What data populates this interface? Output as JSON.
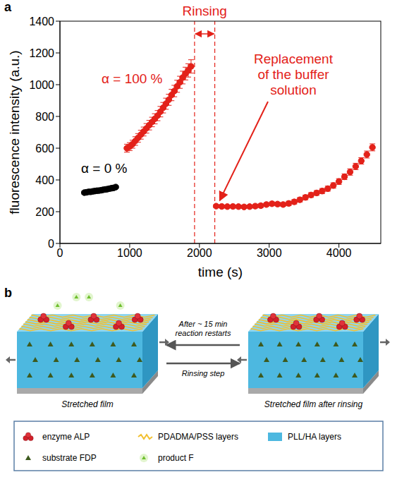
{
  "panel_labels": [
    "a",
    "b"
  ],
  "chart_data": {
    "type": "scatter",
    "x_label": "time (s)",
    "y_label": "fluorescence intensity (a.u.)",
    "xlim": [
      0,
      4600
    ],
    "xticks": [
      0,
      1000,
      2000,
      3000,
      4000
    ],
    "ylim": [
      0,
      1400
    ],
    "yticks": [
      0,
      200,
      400,
      600,
      800,
      1000,
      1200,
      1400
    ],
    "marker": "circle",
    "series": [
      {
        "name": "α = 0 %",
        "color": "#000000",
        "x": [
          350,
          380,
          410,
          440,
          470,
          500,
          530,
          560,
          590,
          620,
          650,
          680,
          710,
          740,
          770,
          800
        ],
        "values": [
          320,
          322,
          325,
          325,
          328,
          330,
          332,
          333,
          335,
          338,
          340,
          342,
          345,
          348,
          350,
          355
        ],
        "errors": [
          10,
          10,
          10,
          10,
          10,
          10,
          10,
          10,
          10,
          10,
          10,
          10,
          10,
          10,
          10,
          10
        ]
      },
      {
        "name": "α = 100 %",
        "color": "#e32119",
        "x": [
          960,
          1000,
          1040,
          1080,
          1120,
          1160,
          1200,
          1240,
          1280,
          1320,
          1360,
          1400,
          1440,
          1480,
          1520,
          1560,
          1600,
          1640,
          1680,
          1720,
          1760,
          1800,
          1840,
          1880,
          2240,
          2320,
          2400,
          2480,
          2560,
          2640,
          2720,
          2800,
          2880,
          2960,
          3040,
          3120,
          3200,
          3280,
          3360,
          3440,
          3520,
          3600,
          3680,
          3760,
          3840,
          3920,
          4000,
          4080,
          4160,
          4240,
          4320,
          4400,
          4480
        ],
        "values": [
          600,
          610,
          625,
          645,
          665,
          685,
          705,
          725,
          745,
          765,
          785,
          805,
          830,
          855,
          880,
          905,
          935,
          960,
          990,
          1015,
          1045,
          1070,
          1090,
          1115,
          235,
          233,
          232,
          233,
          232,
          230,
          232,
          235,
          238,
          245,
          250,
          248,
          245,
          252,
          262,
          275,
          290,
          305,
          318,
          330,
          345,
          365,
          390,
          420,
          450,
          485,
          520,
          560,
          605
        ],
        "errors": [
          25,
          25,
          25,
          27,
          27,
          28,
          28,
          30,
          30,
          30,
          32,
          32,
          33,
          33,
          35,
          35,
          36,
          36,
          38,
          38,
          40,
          40,
          42,
          42,
          10,
          10,
          10,
          10,
          10,
          10,
          10,
          12,
          12,
          12,
          12,
          12,
          12,
          14,
          14,
          14,
          15,
          15,
          15,
          16,
          16,
          17,
          18,
          18,
          20,
          20,
          20,
          22,
          22
        ]
      }
    ],
    "annotations": [
      {
        "text": "Rinsing",
        "x": [
          1930,
          2220
        ]
      },
      {
        "text": "Replacement of the buffer solution",
        "x": 2240,
        "y": 235
      }
    ]
  },
  "diagram": {
    "films": [
      {
        "label": "Stretched film"
      },
      {
        "label": "Stretched film after rinsing"
      }
    ],
    "arrows": [
      {
        "label": "After ~ 15 min reaction restarts",
        "direction": "left"
      },
      {
        "label": "Rinsing step",
        "direction": "right"
      }
    ],
    "legend": [
      {
        "label": "enzyme ALP"
      },
      {
        "label": "PDADMA/PSS layers"
      },
      {
        "label": "PLL/HA layers"
      },
      {
        "label": "substrate FDP"
      },
      {
        "label": "product F"
      }
    ]
  }
}
